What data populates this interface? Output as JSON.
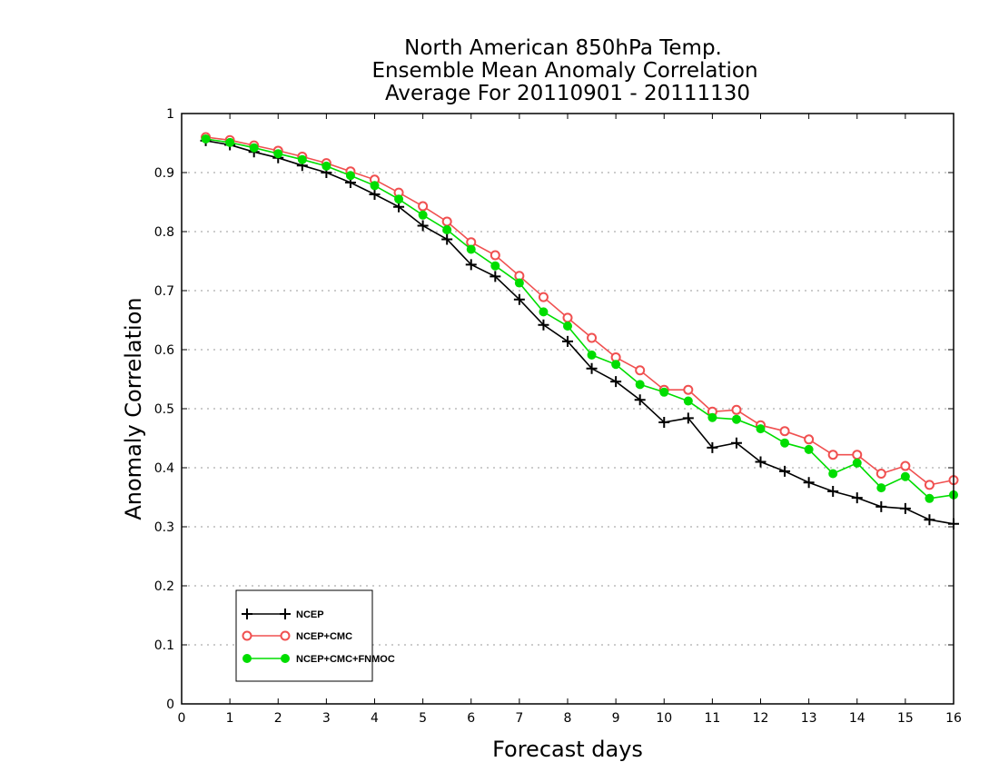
{
  "chart_data": {
    "type": "line",
    "title_lines": [
      "North American 850hPa Temp.",
      "Ensemble Mean Anomaly Correlation",
      "Average For 20110901 - 20111130"
    ],
    "xlabel": "Forecast days",
    "ylabel": "Anomaly Correlation",
    "xlim": [
      0,
      16
    ],
    "ylim": [
      0,
      1
    ],
    "x_ticks": [
      0,
      1,
      2,
      3,
      4,
      5,
      6,
      7,
      8,
      9,
      10,
      11,
      12,
      13,
      14,
      15,
      16
    ],
    "x_tick_labels": [
      "0",
      "1",
      "2",
      "3",
      "4",
      "5",
      "6",
      "7",
      "8",
      "9",
      "10",
      "11",
      "12",
      "13",
      "14",
      "15",
      "16"
    ],
    "y_ticks": [
      0,
      0.1,
      0.2,
      0.3,
      0.4,
      0.5,
      0.6,
      0.7,
      0.8,
      0.9,
      1
    ],
    "y_tick_labels": [
      "0",
      "0.1",
      "0.2",
      "0.3",
      "0.4",
      "0.5",
      "0.6",
      "0.7",
      "0.8",
      "0.9",
      "1"
    ],
    "grid": "horizontal dotted",
    "legend_position": "bottom-left",
    "x": [
      0.5,
      1,
      1.5,
      2,
      2.5,
      3,
      3.5,
      4,
      4.5,
      5,
      5.5,
      6,
      6.5,
      7,
      7.5,
      8,
      8.5,
      9,
      9.5,
      10,
      10.5,
      11,
      11.5,
      12,
      12.5,
      13,
      13.5,
      14,
      14.5,
      15,
      15.5,
      16
    ],
    "series": [
      {
        "name": "NCEP",
        "color": "#000000",
        "marker": "plus",
        "values": [
          0.954,
          0.947,
          0.935,
          0.925,
          0.912,
          0.9,
          0.883,
          0.863,
          0.842,
          0.81,
          0.787,
          0.744,
          0.724,
          0.685,
          0.642,
          0.614,
          0.568,
          0.546,
          0.515,
          0.477,
          0.484,
          0.434,
          0.442,
          0.41,
          0.394,
          0.375,
          0.36,
          0.349,
          0.334,
          0.331,
          0.312,
          0.305
        ]
      },
      {
        "name": "NCEP+CMC",
        "color": "#f05050",
        "marker": "open-circle",
        "values": [
          0.96,
          0.955,
          0.946,
          0.937,
          0.927,
          0.916,
          0.902,
          0.888,
          0.866,
          0.843,
          0.817,
          0.782,
          0.76,
          0.725,
          0.689,
          0.654,
          0.62,
          0.587,
          0.565,
          0.532,
          0.532,
          0.495,
          0.498,
          0.472,
          0.462,
          0.448,
          0.422,
          0.422,
          0.39,
          0.403,
          0.371,
          0.379
        ]
      },
      {
        "name": "NCEP+CMC+FNMOC",
        "color": "#00dd00",
        "marker": "filled-circle",
        "values": [
          0.957,
          0.951,
          0.942,
          0.932,
          0.922,
          0.911,
          0.895,
          0.878,
          0.855,
          0.828,
          0.803,
          0.77,
          0.742,
          0.713,
          0.664,
          0.64,
          0.591,
          0.575,
          0.541,
          0.528,
          0.513,
          0.485,
          0.482,
          0.466,
          0.442,
          0.431,
          0.39,
          0.408,
          0.366,
          0.385,
          0.348,
          0.354
        ]
      }
    ]
  }
}
